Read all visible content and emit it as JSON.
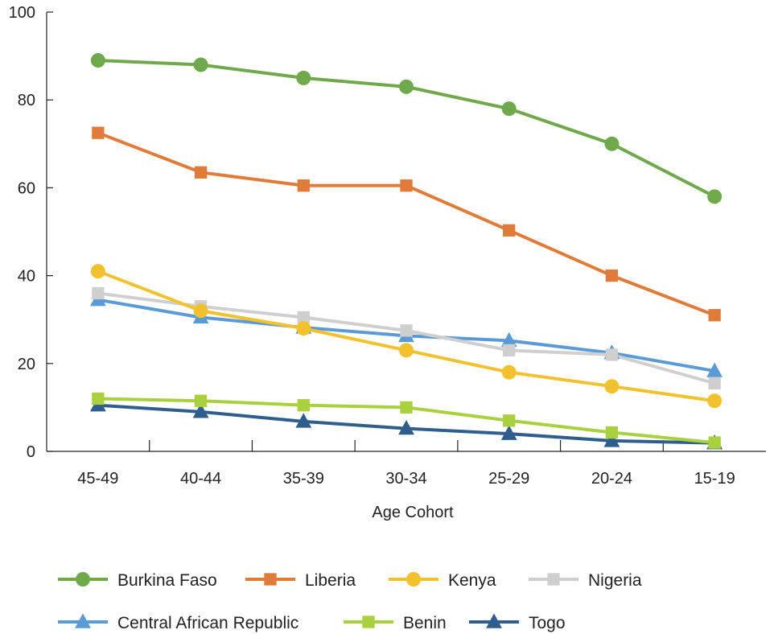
{
  "chart_data": {
    "type": "line",
    "title": "",
    "xlabel": "Age Cohort",
    "ylabel": "",
    "categories": [
      "45-49",
      "40-44",
      "35-39",
      "30-34",
      "25-29",
      "20-24",
      "15-19"
    ],
    "ylim": [
      0,
      100
    ],
    "yticks": [
      0,
      20,
      40,
      60,
      80,
      100
    ],
    "grid": false,
    "legend_position": "bottom",
    "series": [
      {
        "name": "Burkina Faso",
        "marker": "circle",
        "color": "#70a84c",
        "values": [
          89,
          88,
          85,
          83,
          78,
          70,
          58
        ]
      },
      {
        "name": "Liberia",
        "marker": "square",
        "color": "#e07b39",
        "values": [
          72.5,
          63.5,
          60.5,
          60.5,
          50.3,
          40,
          31
        ]
      },
      {
        "name": "Kenya",
        "marker": "circle",
        "color": "#f2c12e",
        "values": [
          41,
          32,
          28,
          23,
          18,
          14.8,
          11.5
        ]
      },
      {
        "name": "Nigeria",
        "marker": "square",
        "color": "#cfcfcf",
        "values": [
          36,
          33,
          30.5,
          27.5,
          23,
          22,
          15.5
        ]
      },
      {
        "name": "Central African Republic",
        "marker": "triangle",
        "color": "#5b9bd5",
        "values": [
          34.5,
          30.5,
          28.2,
          26.3,
          25.2,
          22.4,
          18.3
        ]
      },
      {
        "name": "Benin",
        "marker": "square",
        "color": "#a9d13f",
        "values": [
          12,
          11.5,
          10.5,
          10,
          7,
          4.3,
          2
        ]
      },
      {
        "name": "Togo",
        "marker": "triangle",
        "color": "#2f5e8e",
        "values": [
          10.5,
          9,
          6.8,
          5.2,
          4,
          2.4,
          1.9
        ]
      }
    ]
  }
}
